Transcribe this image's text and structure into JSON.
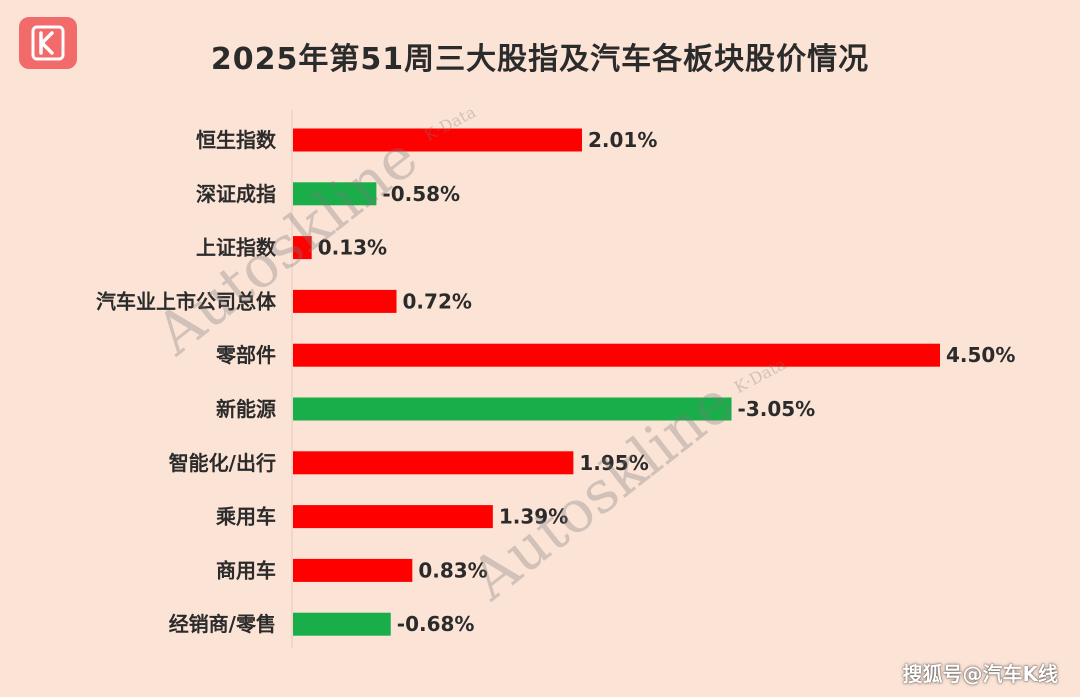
{
  "title": "2025年第51周三大股指及汽车各板块股价情况",
  "logo": {
    "icon": "k-logo-icon",
    "color": "#f26a6a"
  },
  "watermark": {
    "text": "Autoskline",
    "subtext": "K·Data"
  },
  "footer": {
    "text": "搜狐号@汽车K线"
  },
  "colors": {
    "positive": "#ff0000",
    "negative": "#1aae4a",
    "background": "#fbe3d6"
  },
  "chart_data": {
    "type": "bar",
    "orientation": "horizontal",
    "title": "2025年第51周三大股指及汽车各板块股价情况",
    "categories": [
      "恒生指数",
      "深证成指",
      "上证指数",
      "汽车业上市公司总体",
      "零部件",
      "新能源",
      "智能化/出行",
      "乘用车",
      "商用车",
      "经销商/零售"
    ],
    "values": [
      2.01,
      -0.58,
      0.13,
      0.72,
      4.5,
      -3.05,
      1.95,
      1.39,
      0.83,
      -0.68
    ],
    "value_labels": [
      "2.01%",
      "-0.58%",
      "0.13%",
      "0.72%",
      "4.50%",
      "-3.05%",
      "1.95%",
      "1.39%",
      "0.83%",
      "-0.68%"
    ],
    "unit": "%",
    "bar_length": "absolute value",
    "color_rule": "positive red, negative green",
    "xlim": [
      0,
      4.5
    ],
    "grid": false,
    "legend": "none"
  }
}
